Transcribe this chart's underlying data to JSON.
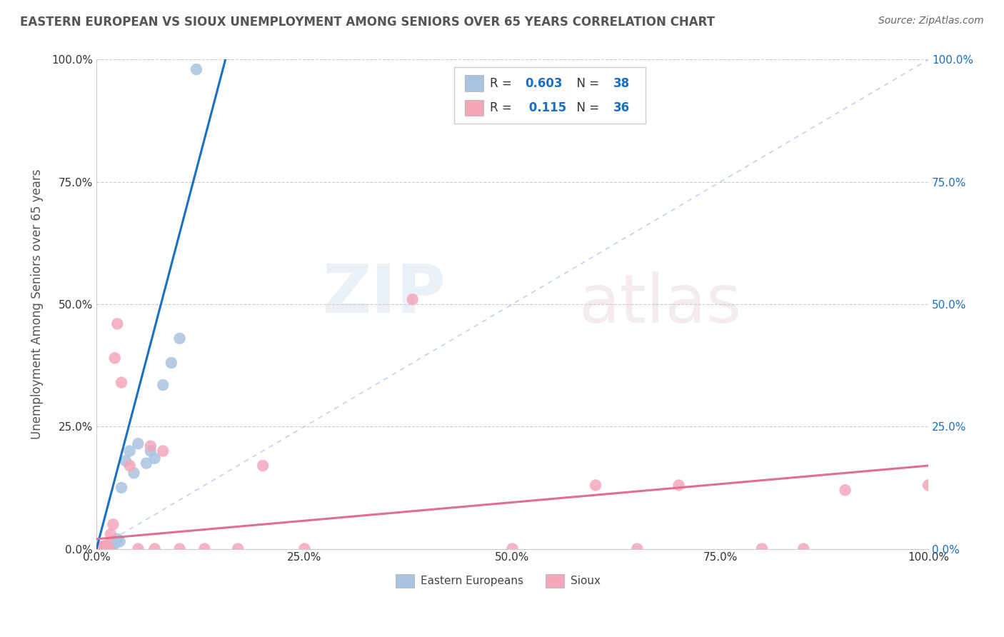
{
  "title": "EASTERN EUROPEAN VS SIOUX UNEMPLOYMENT AMONG SENIORS OVER 65 YEARS CORRELATION CHART",
  "source": "Source: ZipAtlas.com",
  "ylabel": "Unemployment Among Seniors over 65 years",
  "xlim": [
    0,
    1.0
  ],
  "ylim": [
    0,
    1.0
  ],
  "xtick_labels": [
    "0.0%",
    "25.0%",
    "50.0%",
    "75.0%",
    "100.0%"
  ],
  "xtick_vals": [
    0.0,
    0.25,
    0.5,
    0.75,
    1.0
  ],
  "ytick_labels": [
    "0.0%",
    "25.0%",
    "50.0%",
    "75.0%",
    "100.0%"
  ],
  "ytick_vals": [
    0.0,
    0.25,
    0.5,
    0.75,
    1.0
  ],
  "eastern_R": "0.603",
  "eastern_N": "38",
  "sioux_R": "0.115",
  "sioux_N": "36",
  "eastern_color": "#a8c4e0",
  "sioux_color": "#f4a7b9",
  "eastern_line_color": "#1a6fc4",
  "sioux_line_color": "#e07090",
  "legend_color_eastern": "#a8c4e0",
  "legend_color_sioux": "#f4a7b9",
  "watermark_zip": "ZIP",
  "watermark_atlas": "atlas",
  "background_color": "#ffffff",
  "grid_color": "#cccccc",
  "title_color": "#555555",
  "r_n_color": "#1a6fc4",
  "left_tick_color": "#333333",
  "right_tick_color": "#1a6fc4",
  "eastern_x": [
    0.003,
    0.004,
    0.005,
    0.006,
    0.006,
    0.007,
    0.007,
    0.008,
    0.008,
    0.009,
    0.009,
    0.01,
    0.01,
    0.011,
    0.012,
    0.012,
    0.013,
    0.014,
    0.015,
    0.016,
    0.017,
    0.018,
    0.02,
    0.022,
    0.025,
    0.028,
    0.03,
    0.035,
    0.04,
    0.045,
    0.05,
    0.06,
    0.065,
    0.07,
    0.08,
    0.09,
    0.1,
    0.12
  ],
  "eastern_y": [
    0.0,
    0.0,
    0.0,
    0.0,
    0.003,
    0.0,
    0.005,
    0.0,
    0.002,
    0.0,
    0.004,
    0.0,
    0.003,
    0.005,
    0.0,
    0.006,
    0.003,
    0.008,
    0.005,
    0.007,
    0.01,
    0.008,
    0.015,
    0.01,
    0.02,
    0.015,
    0.125,
    0.18,
    0.2,
    0.155,
    0.215,
    0.175,
    0.2,
    0.185,
    0.335,
    0.38,
    0.43,
    0.98
  ],
  "eastern_line_x": [
    0.0,
    0.155
  ],
  "eastern_line_y": [
    0.0,
    1.0
  ],
  "sioux_x": [
    0.003,
    0.004,
    0.005,
    0.006,
    0.007,
    0.008,
    0.009,
    0.01,
    0.011,
    0.012,
    0.013,
    0.015,
    0.017,
    0.02,
    0.022,
    0.025,
    0.03,
    0.04,
    0.05,
    0.065,
    0.07,
    0.08,
    0.1,
    0.13,
    0.17,
    0.2,
    0.25,
    0.38,
    0.5,
    0.6,
    0.65,
    0.7,
    0.8,
    0.85,
    0.9,
    1.0
  ],
  "sioux_y": [
    0.0,
    0.0,
    0.003,
    0.0,
    0.0,
    0.005,
    0.0,
    0.003,
    0.0,
    0.0,
    0.008,
    0.0,
    0.03,
    0.05,
    0.39,
    0.46,
    0.34,
    0.17,
    0.0,
    0.21,
    0.0,
    0.2,
    0.0,
    0.0,
    0.0,
    0.17,
    0.0,
    0.51,
    0.0,
    0.13,
    0.0,
    0.13,
    0.0,
    0.0,
    0.12,
    0.13
  ],
  "sioux_line_x": [
    0.0,
    1.0
  ],
  "sioux_line_y": [
    0.02,
    0.17
  ]
}
